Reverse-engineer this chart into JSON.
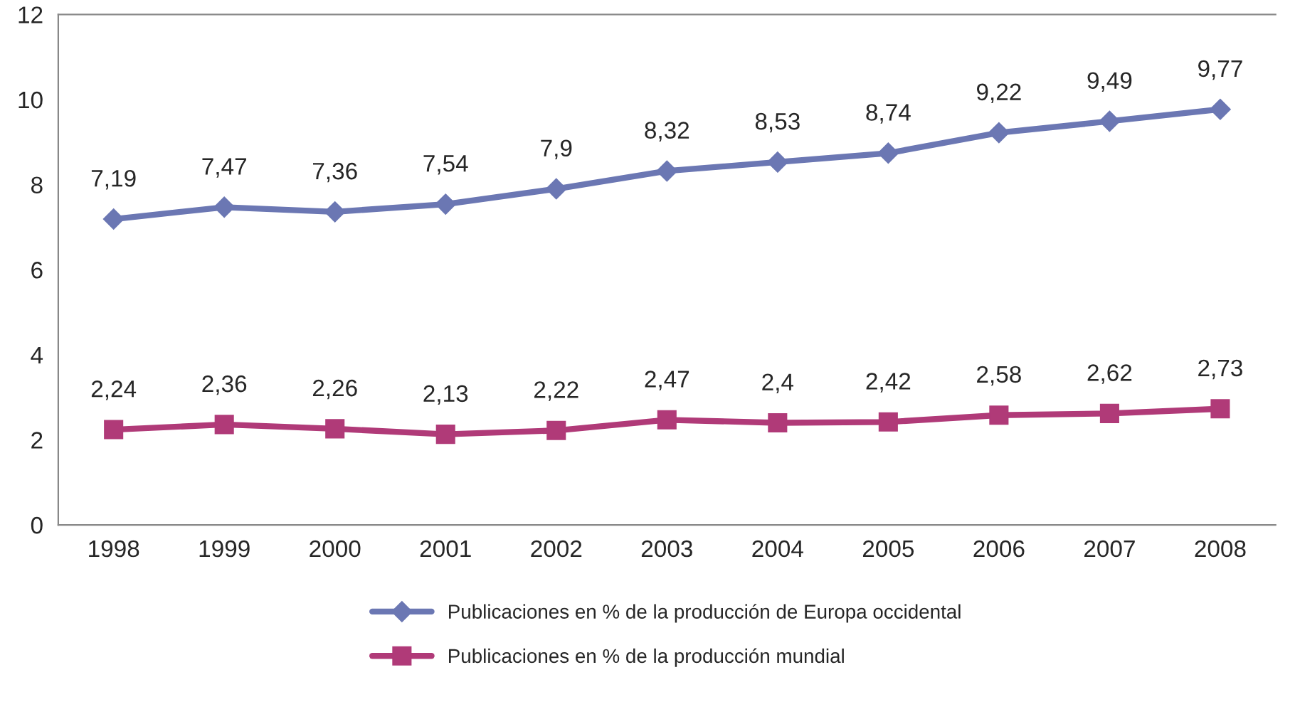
{
  "chart_data": {
    "type": "line",
    "categories": [
      "1998",
      "1999",
      "2000",
      "2001",
      "2002",
      "2003",
      "2004",
      "2005",
      "2006",
      "2007",
      "2008"
    ],
    "series": [
      {
        "name": "Publicaciones en % de la producción de Europa occidental",
        "color": "#6b77b3",
        "marker": "diamond",
        "values": [
          7.19,
          7.47,
          7.36,
          7.54,
          7.9,
          8.32,
          8.53,
          8.74,
          9.22,
          9.49,
          9.77
        ],
        "value_labels": [
          "7,19",
          "7,47",
          "7,36",
          "7,54",
          "7,9",
          "8,32",
          "8,53",
          "8,74",
          "9,22",
          "9,49",
          "9,77"
        ]
      },
      {
        "name": "Publicaciones en % de la producción mundial",
        "color": "#b03a78",
        "marker": "square",
        "values": [
          2.24,
          2.36,
          2.26,
          2.13,
          2.22,
          2.47,
          2.4,
          2.42,
          2.58,
          2.62,
          2.73
        ],
        "value_labels": [
          "2,24",
          "2,36",
          "2,26",
          "2,13",
          "2,22",
          "2,47",
          "2,4",
          "2,42",
          "2,58",
          "2,62",
          "2,73"
        ]
      }
    ],
    "ylim": [
      0,
      12
    ],
    "yticks": [
      0,
      2,
      4,
      6,
      8,
      10,
      12
    ],
    "grid": false,
    "legend": "bottom",
    "line_style": "solid"
  }
}
